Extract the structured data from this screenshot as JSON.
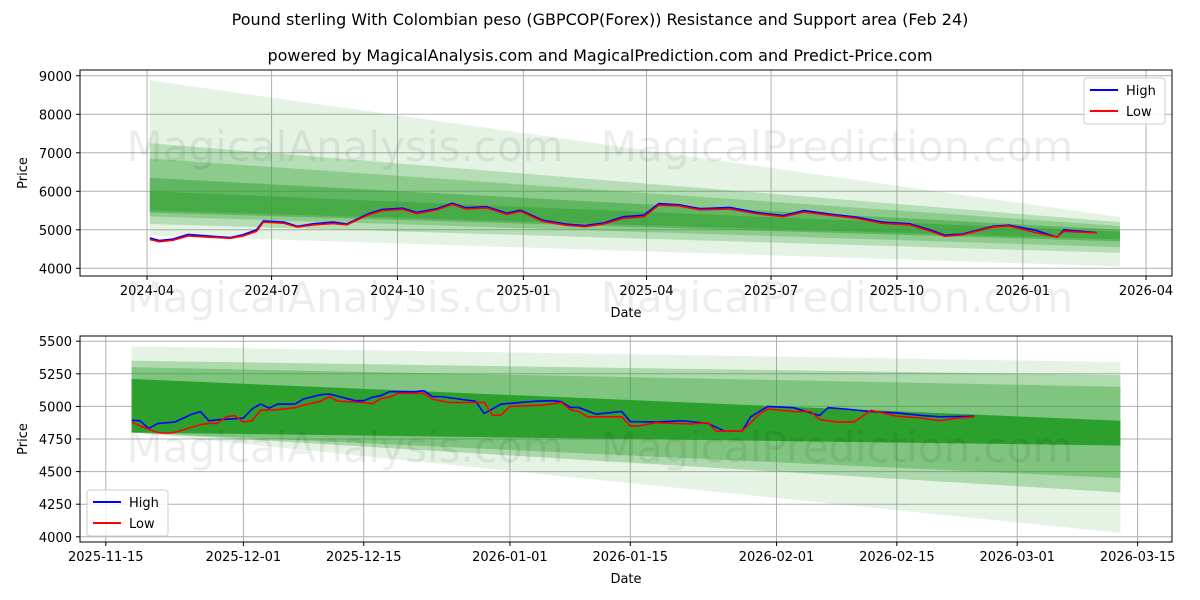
{
  "title": "Pound sterling With Colombian peso (GBPCOP(Forex)) Resistance and Support area (Feb 24)",
  "subtitle": "powered by MagicalAnalysis.com and MagicalPrediction.com and Predict-Price.com",
  "watermark": [
    "MagicalAnalysis.com",
    "MagicalPrediction.com"
  ],
  "colors": {
    "high": "#0000ff",
    "low": "#ff0000",
    "band": "#2ca02c"
  },
  "chart_data": [
    {
      "type": "line",
      "xlabel": "Date",
      "ylabel": "Price",
      "ylim": [
        3800,
        9150
      ],
      "xlim": [
        "2024-02-12",
        "2026-04-20"
      ],
      "grid": true,
      "legend": "top-right",
      "yticks": [
        4000,
        5000,
        6000,
        7000,
        8000,
        9000
      ],
      "xticks": [
        "2024-04",
        "2024-07",
        "2024-10",
        "2025-01",
        "2025-04",
        "2025-07",
        "2025-10",
        "2026-01",
        "2026-04"
      ],
      "legend_entries": [
        "High",
        "Low"
      ],
      "bands_range": [
        "2024-04-03",
        "2026-03-13"
      ],
      "bands": [
        [
          8880,
          4850,
          5330,
          4050,
          0.12
        ],
        [
          7250,
          5150,
          5200,
          4400,
          0.25
        ],
        [
          6850,
          5350,
          5100,
          4550,
          0.3
        ],
        [
          6350,
          5450,
          5000,
          4700,
          0.45
        ],
        [
          6000,
          5500,
          4950,
          4750,
          0.5
        ]
      ],
      "series": [
        {
          "name": "High",
          "points": [
            [
              "2024-04-03",
              4790
            ],
            [
              "2024-04-10",
              4720
            ],
            [
              "2024-04-20",
              4760
            ],
            [
              "2024-05-01",
              4880
            ],
            [
              "2024-05-15",
              4840
            ],
            [
              "2024-06-01",
              4800
            ],
            [
              "2024-06-10",
              4870
            ],
            [
              "2024-06-20",
              5000
            ],
            [
              "2024-06-25",
              5230
            ],
            [
              "2024-07-10",
              5200
            ],
            [
              "2024-07-20",
              5090
            ],
            [
              "2024-08-01",
              5160
            ],
            [
              "2024-08-15",
              5200
            ],
            [
              "2024-08-25",
              5150
            ],
            [
              "2024-09-10",
              5420
            ],
            [
              "2024-09-20",
              5530
            ],
            [
              "2024-10-05",
              5560
            ],
            [
              "2024-10-15",
              5450
            ],
            [
              "2024-10-30",
              5550
            ],
            [
              "2024-11-10",
              5690
            ],
            [
              "2024-11-20",
              5570
            ],
            [
              "2024-12-05",
              5600
            ],
            [
              "2024-12-20",
              5430
            ],
            [
              "2024-12-30",
              5510
            ],
            [
              "2025-01-15",
              5250
            ],
            [
              "2025-02-01",
              5150
            ],
            [
              "2025-02-15",
              5110
            ],
            [
              "2025-03-01",
              5180
            ],
            [
              "2025-03-15",
              5340
            ],
            [
              "2025-03-30",
              5380
            ],
            [
              "2025-04-10",
              5680
            ],
            [
              "2025-04-25",
              5650
            ],
            [
              "2025-05-10",
              5550
            ],
            [
              "2025-06-01",
              5580
            ],
            [
              "2025-06-20",
              5450
            ],
            [
              "2025-07-10",
              5370
            ],
            [
              "2025-07-25",
              5500
            ],
            [
              "2025-08-15",
              5400
            ],
            [
              "2025-09-01",
              5330
            ],
            [
              "2025-09-20",
              5200
            ],
            [
              "2025-10-10",
              5160
            ],
            [
              "2025-10-25",
              5000
            ],
            [
              "2025-11-05",
              4860
            ],
            [
              "2025-11-18",
              4890
            ],
            [
              "2025-12-10",
              5090
            ],
            [
              "2025-12-22",
              5120
            ],
            [
              "2026-01-10",
              4990
            ],
            [
              "2026-01-26",
              4810
            ],
            [
              "2026-01-31",
              5000
            ],
            [
              "2026-02-24",
              4925
            ]
          ]
        },
        {
          "name": "Low",
          "points": [
            [
              "2024-04-03",
              4750
            ],
            [
              "2024-04-10",
              4690
            ],
            [
              "2024-04-20",
              4730
            ],
            [
              "2024-05-01",
              4840
            ],
            [
              "2024-05-15",
              4810
            ],
            [
              "2024-06-01",
              4780
            ],
            [
              "2024-06-10",
              4840
            ],
            [
              "2024-06-20",
              4960
            ],
            [
              "2024-06-25",
              5200
            ],
            [
              "2024-07-10",
              5170
            ],
            [
              "2024-07-20",
              5070
            ],
            [
              "2024-08-01",
              5130
            ],
            [
              "2024-08-15",
              5160
            ],
            [
              "2024-08-25",
              5130
            ],
            [
              "2024-09-10",
              5390
            ],
            [
              "2024-09-20",
              5500
            ],
            [
              "2024-10-05",
              5530
            ],
            [
              "2024-10-15",
              5420
            ],
            [
              "2024-10-30",
              5520
            ],
            [
              "2024-11-10",
              5660
            ],
            [
              "2024-11-20",
              5540
            ],
            [
              "2024-12-05",
              5570
            ],
            [
              "2024-12-20",
              5400
            ],
            [
              "2024-12-30",
              5480
            ],
            [
              "2025-01-15",
              5220
            ],
            [
              "2025-02-01",
              5120
            ],
            [
              "2025-02-15",
              5080
            ],
            [
              "2025-03-01",
              5150
            ],
            [
              "2025-03-15",
              5300
            ],
            [
              "2025-03-30",
              5340
            ],
            [
              "2025-04-10",
              5640
            ],
            [
              "2025-04-25",
              5620
            ],
            [
              "2025-05-10",
              5520
            ],
            [
              "2025-06-01",
              5540
            ],
            [
              "2025-06-20",
              5420
            ],
            [
              "2025-07-10",
              5340
            ],
            [
              "2025-07-25",
              5460
            ],
            [
              "2025-08-15",
              5370
            ],
            [
              "2025-09-01",
              5300
            ],
            [
              "2025-09-20",
              5170
            ],
            [
              "2025-10-10",
              5130
            ],
            [
              "2025-10-25",
              4970
            ],
            [
              "2025-11-05",
              4830
            ],
            [
              "2025-11-18",
              4870
            ],
            [
              "2025-12-10",
              5070
            ],
            [
              "2025-12-22",
              5100
            ],
            [
              "2026-01-10",
              4930
            ],
            [
              "2026-01-26",
              4810
            ],
            [
              "2026-01-31",
              4960
            ],
            [
              "2026-02-24",
              4920
            ]
          ]
        }
      ]
    },
    {
      "type": "line",
      "xlabel": "Date",
      "ylabel": "Price",
      "ylim": [
        3960,
        5540
      ],
      "xlim": [
        "2025-11-12",
        "2026-03-19"
      ],
      "grid": true,
      "legend": "bottom-left",
      "yticks": [
        4000,
        4250,
        4500,
        4750,
        5000,
        5250,
        5500
      ],
      "xticks": [
        "2025-11-15",
        "2025-12-01",
        "2025-12-15",
        "2026-01-01",
        "2026-01-15",
        "2026-02-01",
        "2026-02-15",
        "2026-03-01",
        "2026-03-15"
      ],
      "legend_entries": [
        "High",
        "Low"
      ],
      "bands_range": [
        "2025-11-18",
        "2026-03-13"
      ],
      "bands": [
        [
          5460,
          4800,
          5340,
          4030,
          0.12
        ],
        [
          5350,
          4800,
          5240,
          4340,
          0.3
        ],
        [
          5300,
          4800,
          5150,
          4450,
          0.35
        ],
        [
          5210,
          4800,
          4890,
          4700,
          1.0
        ]
      ],
      "series": [
        {
          "name": "High",
          "points": [
            [
              "2025-11-18",
              4894
            ],
            [
              "2025-11-19",
              4889
            ],
            [
              "2025-11-20",
              4830
            ],
            [
              "2025-11-21",
              4868
            ],
            [
              "2025-11-23",
              4880
            ],
            [
              "2025-11-25",
              4940
            ],
            [
              "2025-11-26",
              4960
            ],
            [
              "2025-11-27",
              4890
            ],
            [
              "2025-11-28",
              4897
            ],
            [
              "2025-12-01",
              4910
            ],
            [
              "2025-12-02",
              4980
            ],
            [
              "2025-12-03",
              5018
            ],
            [
              "2025-12-04",
              4987
            ],
            [
              "2025-12-05",
              5018
            ],
            [
              "2025-12-07",
              5018
            ],
            [
              "2025-12-08",
              5057
            ],
            [
              "2025-12-10",
              5090
            ],
            [
              "2025-12-11",
              5095
            ],
            [
              "2025-12-14",
              5044
            ],
            [
              "2025-12-15",
              5044
            ],
            [
              "2025-12-16",
              5070
            ],
            [
              "2025-12-17",
              5083
            ],
            [
              "2025-12-18",
              5113
            ],
            [
              "2025-12-21",
              5113
            ],
            [
              "2025-12-22",
              5120
            ],
            [
              "2025-12-23",
              5075
            ],
            [
              "2025-12-24",
              5075
            ],
            [
              "2025-12-28",
              5040
            ],
            [
              "2025-12-29",
              4946
            ],
            [
              "2025-12-31",
              5018
            ],
            [
              "2026-01-01",
              5023
            ],
            [
              "2026-01-04",
              5040
            ],
            [
              "2026-01-06",
              5044
            ],
            [
              "2026-01-07",
              5036
            ],
            [
              "2026-01-08",
              4992
            ],
            [
              "2026-01-09",
              4992
            ],
            [
              "2026-01-11",
              4940
            ],
            [
              "2026-01-14",
              4961
            ],
            [
              "2026-01-15",
              4884
            ],
            [
              "2026-01-18",
              4880
            ],
            [
              "2026-01-21",
              4890
            ],
            [
              "2026-01-24",
              4870
            ],
            [
              "2026-01-26",
              4810
            ],
            [
              "2026-01-28",
              4810
            ],
            [
              "2026-01-29",
              4920
            ],
            [
              "2026-01-31",
              5000
            ],
            [
              "2026-02-03",
              4990
            ],
            [
              "2026-02-05",
              4950
            ],
            [
              "2026-02-06",
              4930
            ],
            [
              "2026-02-07",
              4990
            ],
            [
              "2026-02-09",
              4980
            ],
            [
              "2026-02-12",
              4960
            ],
            [
              "2026-02-15",
              4950
            ],
            [
              "2026-02-18",
              4930
            ],
            [
              "2026-02-20",
              4920
            ],
            [
              "2026-02-24",
              4925
            ]
          ]
        },
        {
          "name": "Low",
          "points": [
            [
              "2025-11-18",
              4880
            ],
            [
              "2025-11-19",
              4850
            ],
            [
              "2025-11-21",
              4800
            ],
            [
              "2025-11-22",
              4795
            ],
            [
              "2025-11-23",
              4800
            ],
            [
              "2025-11-26",
              4860
            ],
            [
              "2025-11-27",
              4870
            ],
            [
              "2025-11-28",
              4870
            ],
            [
              "2025-11-29",
              4920
            ],
            [
              "2025-11-30",
              4930
            ],
            [
              "2025-12-01",
              4880
            ],
            [
              "2025-12-02",
              4890
            ],
            [
              "2025-12-03",
              4970
            ],
            [
              "2025-12-05",
              4975
            ],
            [
              "2025-12-07",
              4990
            ],
            [
              "2025-12-08",
              5010
            ],
            [
              "2025-12-10",
              5040
            ],
            [
              "2025-12-11",
              5075
            ],
            [
              "2025-12-12",
              5040
            ],
            [
              "2025-12-15",
              5030
            ],
            [
              "2025-12-16",
              5020
            ],
            [
              "2025-12-17",
              5060
            ],
            [
              "2025-12-18",
              5070
            ],
            [
              "2025-12-19",
              5100
            ],
            [
              "2025-12-22",
              5100
            ],
            [
              "2025-12-23",
              5055
            ],
            [
              "2025-12-25",
              5030
            ],
            [
              "2025-12-29",
              5030
            ],
            [
              "2025-12-30",
              4930
            ],
            [
              "2025-12-31",
              4935
            ],
            [
              "2026-01-01",
              5000
            ],
            [
              "2026-01-05",
              5010
            ],
            [
              "2026-01-07",
              5030
            ],
            [
              "2026-01-08",
              4975
            ],
            [
              "2026-01-09",
              4960
            ],
            [
              "2026-01-10",
              4920
            ],
            [
              "2026-01-14",
              4920
            ],
            [
              "2026-01-15",
              4850
            ],
            [
              "2026-01-16",
              4850
            ],
            [
              "2026-01-18",
              4875
            ],
            [
              "2026-01-22",
              4865
            ],
            [
              "2026-01-24",
              4875
            ],
            [
              "2026-01-25",
              4810
            ],
            [
              "2026-01-28",
              4810
            ],
            [
              "2026-01-30",
              4940
            ],
            [
              "2026-01-31",
              4980
            ],
            [
              "2026-02-03",
              4960
            ],
            [
              "2026-02-05",
              4960
            ],
            [
              "2026-02-06",
              4900
            ],
            [
              "2026-02-08",
              4880
            ],
            [
              "2026-02-10",
              4880
            ],
            [
              "2026-02-12",
              4970
            ],
            [
              "2026-02-15",
              4925
            ],
            [
              "2026-02-18",
              4910
            ],
            [
              "2026-02-20",
              4890
            ],
            [
              "2026-02-22",
              4910
            ],
            [
              "2026-02-24",
              4920
            ]
          ]
        }
      ]
    }
  ]
}
